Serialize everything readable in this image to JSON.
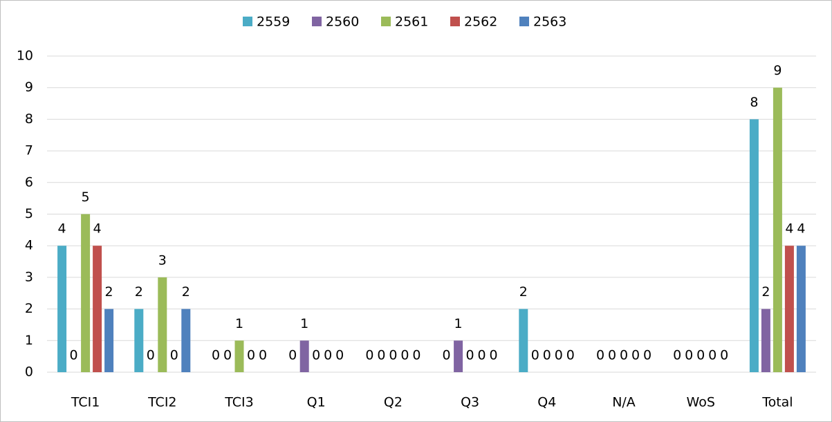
{
  "chart_data": {
    "type": "bar",
    "categories": [
      "TCI1",
      "TCI2",
      "TCI3",
      "Q1",
      "Q2",
      "Q3",
      "Q4",
      "N/A",
      "WoS",
      "Total"
    ],
    "series": [
      {
        "name": "2559",
        "color": "#4bacc6",
        "values": [
          4,
          2,
          0,
          0,
          0,
          0,
          2,
          0,
          0,
          8
        ]
      },
      {
        "name": "2560",
        "color": "#8064a2",
        "values": [
          0,
          0,
          0,
          1,
          0,
          1,
          0,
          0,
          0,
          2
        ]
      },
      {
        "name": "2561",
        "color": "#9bbb59",
        "values": [
          5,
          3,
          1,
          0,
          0,
          0,
          0,
          0,
          0,
          9
        ]
      },
      {
        "name": "2562",
        "color": "#c0504d",
        "values": [
          4,
          0,
          0,
          0,
          0,
          0,
          0,
          0,
          0,
          4
        ]
      },
      {
        "name": "2563",
        "color": "#4f81bd",
        "values": [
          2,
          2,
          0,
          0,
          0,
          0,
          0,
          0,
          0,
          4
        ]
      }
    ],
    "ylim": [
      0,
      10
    ],
    "yticks": [
      0,
      1,
      2,
      3,
      4,
      5,
      6,
      7,
      8,
      9,
      10
    ],
    "grid": true,
    "legend": "top"
  }
}
